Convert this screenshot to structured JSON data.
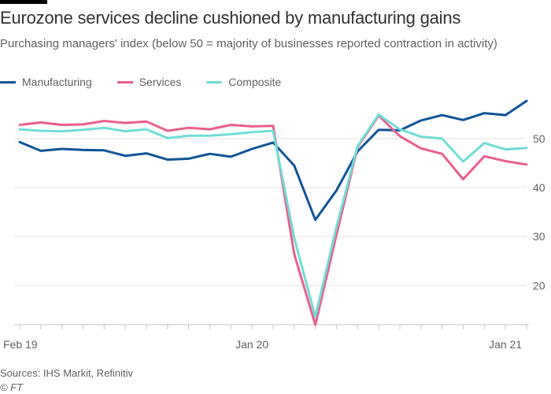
{
  "header": {
    "title": "Eurozone services decline cushioned by manufacturing gains",
    "subtitle": "Purchasing managers' index (below 50 = majority of businesses reported contraction in activity)"
  },
  "legend": [
    {
      "name": "Manufacturing",
      "color": "#0f5499"
    },
    {
      "name": "Services",
      "color": "#eb5e8d"
    },
    {
      "name": "Composite",
      "color": "#70dcd6"
    }
  ],
  "footer": {
    "source": "Sources: IHS Markit, Refinitiv",
    "credit": "© FT"
  },
  "chart_data": {
    "type": "line",
    "title": "Eurozone services decline cushioned by manufacturing gains",
    "subtitle": "Purchasing managers' index (below 50 = majority of businesses reported contraction in activity)",
    "xlabel": "",
    "ylabel": "",
    "x": [
      "Feb 19",
      "Mar 19",
      "Apr 19",
      "May 19",
      "Jun 19",
      "Jul 19",
      "Aug 19",
      "Sep 19",
      "Oct 19",
      "Nov 19",
      "Dec 19",
      "Jan 20",
      "Feb 20",
      "Mar 20",
      "Apr 20",
      "May 20",
      "Jun 20",
      "Jul 20",
      "Aug 20",
      "Sep 20",
      "Oct 20",
      "Nov 20",
      "Dec 20",
      "Jan 21",
      "Feb 21"
    ],
    "x_tick_labels": [
      {
        "index": 0,
        "label": "Feb 19"
      },
      {
        "index": 11,
        "label": "Jan 20"
      },
      {
        "index": 23,
        "label": "Jan 21"
      }
    ],
    "y_ticks": [
      20,
      30,
      40,
      50
    ],
    "ylim": [
      12,
      59
    ],
    "y_axis_position": "right",
    "grid": true,
    "legend_position": "top-left",
    "series": [
      {
        "name": "Manufacturing",
        "color": "#0f5499",
        "values": [
          49.3,
          47.5,
          47.9,
          47.7,
          47.6,
          46.5,
          47.0,
          45.7,
          45.9,
          46.9,
          46.3,
          47.9,
          49.2,
          44.5,
          33.4,
          39.4,
          47.4,
          51.8,
          51.7,
          53.7,
          54.8,
          53.8,
          55.2,
          54.8,
          57.7
        ]
      },
      {
        "name": "Services",
        "color": "#eb5e8d",
        "values": [
          52.8,
          53.3,
          52.8,
          52.9,
          53.6,
          53.2,
          53.5,
          51.6,
          52.2,
          51.9,
          52.8,
          52.5,
          52.6,
          26.4,
          12.0,
          30.3,
          48.3,
          54.7,
          50.5,
          48.0,
          46.9,
          41.7,
          46.4,
          45.4,
          44.7
        ]
      },
      {
        "name": "Composite",
        "color": "#70dcd6",
        "values": [
          51.9,
          51.6,
          51.5,
          51.8,
          52.2,
          51.5,
          51.9,
          50.1,
          50.6,
          50.6,
          50.9,
          51.3,
          51.6,
          29.7,
          13.6,
          31.9,
          48.5,
          54.9,
          51.9,
          50.4,
          50.0,
          45.3,
          49.1,
          47.8,
          48.1
        ]
      }
    ]
  }
}
